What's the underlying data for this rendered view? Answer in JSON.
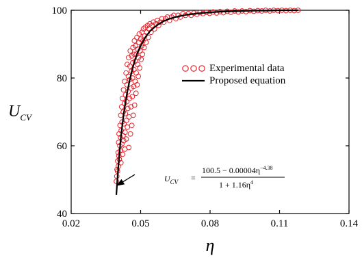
{
  "chart_data": {
    "type": "scatter",
    "xlabel": "η",
    "ylabel": "U",
    "ylabel_sub": "CV",
    "xlim": [
      0.02,
      0.14
    ],
    "ylim": [
      40,
      100
    ],
    "x_ticks": [
      0.02,
      0.05,
      0.08,
      0.11,
      0.14
    ],
    "x_tick_labels": [
      "0.02",
      "0.05",
      "0.08",
      "0.11",
      "0.14"
    ],
    "y_ticks": [
      40,
      60,
      80,
      100
    ],
    "y_tick_labels": [
      "40",
      "60",
      "80",
      "100"
    ],
    "grid": false,
    "legend_position": "center-right",
    "series": [
      {
        "name": "Experimental data",
        "kind": "scatter",
        "marker": "open-circle",
        "color": "#e8202a",
        "points": [
          [
            0.0395,
            49.5
          ],
          [
            0.0397,
            51.0
          ],
          [
            0.0398,
            53.0
          ],
          [
            0.04,
            52.5
          ],
          [
            0.0401,
            55.5
          ],
          [
            0.0403,
            58.0
          ],
          [
            0.0404,
            54.0
          ],
          [
            0.0405,
            61.0
          ],
          [
            0.0406,
            57.0
          ],
          [
            0.0407,
            63.5
          ],
          [
            0.0408,
            56.0
          ],
          [
            0.041,
            60.0
          ],
          [
            0.0411,
            66.0
          ],
          [
            0.0412,
            58.5
          ],
          [
            0.0413,
            62.5
          ],
          [
            0.0414,
            69.0
          ],
          [
            0.0415,
            55.0
          ],
          [
            0.0416,
            64.5
          ],
          [
            0.0418,
            71.5
          ],
          [
            0.0419,
            60.5
          ],
          [
            0.042,
            67.0
          ],
          [
            0.0421,
            74.0
          ],
          [
            0.0422,
            57.5
          ],
          [
            0.0424,
            63.0
          ],
          [
            0.0425,
            70.0
          ],
          [
            0.0426,
            76.5
          ],
          [
            0.0427,
            61.5
          ],
          [
            0.0428,
            66.5
          ],
          [
            0.043,
            72.5
          ],
          [
            0.0431,
            79.0
          ],
          [
            0.0432,
            59.0
          ],
          [
            0.0433,
            64.0
          ],
          [
            0.0434,
            69.5
          ],
          [
            0.0435,
            75.0
          ],
          [
            0.0437,
            81.5
          ],
          [
            0.0438,
            62.0
          ],
          [
            0.0439,
            67.5
          ],
          [
            0.044,
            73.0
          ],
          [
            0.0441,
            78.0
          ],
          [
            0.0442,
            84.0
          ],
          [
            0.0443,
            65.5
          ],
          [
            0.0445,
            71.0
          ],
          [
            0.0446,
            76.0
          ],
          [
            0.0447,
            80.5
          ],
          [
            0.0448,
            86.0
          ],
          [
            0.0449,
            59.5
          ],
          [
            0.045,
            68.5
          ],
          [
            0.0452,
            74.0
          ],
          [
            0.0453,
            79.5
          ],
          [
            0.0454,
            83.5
          ],
          [
            0.0455,
            88.0
          ],
          [
            0.0456,
            63.5
          ],
          [
            0.0458,
            71.5
          ],
          [
            0.0459,
            77.0
          ],
          [
            0.046,
            82.0
          ],
          [
            0.0461,
            86.5
          ],
          [
            0.0462,
            66.0
          ],
          [
            0.0464,
            74.5
          ],
          [
            0.0465,
            80.0
          ],
          [
            0.0466,
            84.5
          ],
          [
            0.0467,
            89.0
          ],
          [
            0.0468,
            69.0
          ],
          [
            0.047,
            77.5
          ],
          [
            0.0471,
            82.5
          ],
          [
            0.0472,
            87.0
          ],
          [
            0.0473,
            91.0
          ],
          [
            0.0474,
            72.0
          ],
          [
            0.0476,
            79.0
          ],
          [
            0.0477,
            85.0
          ],
          [
            0.0478,
            89.5
          ],
          [
            0.048,
            75.5
          ],
          [
            0.0481,
            81.5
          ],
          [
            0.0482,
            87.0
          ],
          [
            0.0484,
            92.0
          ],
          [
            0.0485,
            78.0
          ],
          [
            0.0487,
            84.0
          ],
          [
            0.0488,
            88.5
          ],
          [
            0.049,
            80.5
          ],
          [
            0.0491,
            86.0
          ],
          [
            0.0493,
            90.5
          ],
          [
            0.0494,
            93.0
          ],
          [
            0.0496,
            83.0
          ],
          [
            0.0498,
            88.0
          ],
          [
            0.05,
            91.5
          ],
          [
            0.0502,
            85.5
          ],
          [
            0.0504,
            89.5
          ],
          [
            0.0506,
            93.5
          ],
          [
            0.0508,
            87.0
          ],
          [
            0.051,
            91.0
          ],
          [
            0.0512,
            94.5
          ],
          [
            0.0515,
            89.0
          ],
          [
            0.0518,
            92.5
          ],
          [
            0.052,
            95.0
          ],
          [
            0.0523,
            90.5
          ],
          [
            0.0526,
            93.5
          ],
          [
            0.053,
            95.5
          ],
          [
            0.0533,
            92.0
          ],
          [
            0.0537,
            94.5
          ],
          [
            0.054,
            96.0
          ],
          [
            0.0545,
            93.5
          ],
          [
            0.055,
            95.5
          ],
          [
            0.0555,
            96.5
          ],
          [
            0.056,
            94.5
          ],
          [
            0.0566,
            96.0
          ],
          [
            0.0572,
            97.0
          ],
          [
            0.0578,
            95.5
          ],
          [
            0.0585,
            96.5
          ],
          [
            0.0592,
            97.5
          ],
          [
            0.06,
            96.5
          ],
          [
            0.0608,
            97.5
          ],
          [
            0.0616,
            98.0
          ],
          [
            0.0625,
            97.0
          ],
          [
            0.0634,
            98.0
          ],
          [
            0.0643,
            98.5
          ],
          [
            0.0652,
            97.5
          ],
          [
            0.0662,
            98.5
          ],
          [
            0.0672,
            98.0
          ],
          [
            0.0683,
            99.0
          ],
          [
            0.0694,
            98.5
          ],
          [
            0.0706,
            99.0
          ],
          [
            0.0718,
            98.5
          ],
          [
            0.073,
            99.2
          ],
          [
            0.0743,
            98.8
          ],
          [
            0.0756,
            99.3
          ],
          [
            0.077,
            99.0
          ],
          [
            0.0784,
            99.4
          ],
          [
            0.0798,
            99.1
          ],
          [
            0.0813,
            99.5
          ],
          [
            0.0828,
            99.2
          ],
          [
            0.0843,
            99.6
          ],
          [
            0.0858,
            99.3
          ],
          [
            0.0874,
            99.7
          ],
          [
            0.089,
            99.4
          ],
          [
            0.0906,
            99.8
          ],
          [
            0.0922,
            99.5
          ],
          [
            0.0938,
            99.8
          ],
          [
            0.0955,
            99.6
          ],
          [
            0.0972,
            99.9
          ],
          [
            0.0989,
            99.7
          ],
          [
            0.1006,
            99.9
          ],
          [
            0.1023,
            99.8
          ],
          [
            0.104,
            100.0
          ],
          [
            0.1058,
            99.8
          ],
          [
            0.1075,
            100.0
          ],
          [
            0.1093,
            99.9
          ],
          [
            0.111,
            100.0
          ],
          [
            0.1128,
            99.9
          ],
          [
            0.1146,
            100.0
          ],
          [
            0.1163,
            99.9
          ],
          [
            0.118,
            100.0
          ]
        ]
      },
      {
        "name": "Proposed equation",
        "kind": "line",
        "color": "#000000",
        "points": [
          [
            0.0395,
            45.5
          ],
          [
            0.04,
            50.5
          ],
          [
            0.0405,
            55.0
          ],
          [
            0.041,
            59.0
          ],
          [
            0.0415,
            62.5
          ],
          [
            0.042,
            65.5
          ],
          [
            0.0425,
            68.3
          ],
          [
            0.043,
            70.8
          ],
          [
            0.0435,
            73.0
          ],
          [
            0.044,
            75.0
          ],
          [
            0.045,
            78.5
          ],
          [
            0.046,
            81.5
          ],
          [
            0.047,
            84.0
          ],
          [
            0.048,
            86.2
          ],
          [
            0.049,
            88.0
          ],
          [
            0.05,
            89.5
          ],
          [
            0.052,
            92.0
          ],
          [
            0.054,
            93.8
          ],
          [
            0.056,
            95.0
          ],
          [
            0.058,
            96.0
          ],
          [
            0.06,
            96.8
          ],
          [
            0.0625,
            97.5
          ],
          [
            0.065,
            98.0
          ],
          [
            0.07,
            98.7
          ],
          [
            0.075,
            99.1
          ],
          [
            0.08,
            99.4
          ],
          [
            0.085,
            99.6
          ],
          [
            0.09,
            99.7
          ],
          [
            0.095,
            99.8
          ],
          [
            0.1,
            99.9
          ],
          [
            0.105,
            99.9
          ],
          [
            0.11,
            100.0
          ],
          [
            0.115,
            100.0
          ],
          [
            0.118,
            100.0
          ]
        ]
      }
    ],
    "annotation": {
      "lhs": "U",
      "lhs_sub": "CV",
      "equals": "=",
      "numerator_main": "100.5 − 0.00004η",
      "numerator_exp": "−4.38",
      "denominator_main": "1 + 1.16η",
      "denominator_exp": "4",
      "arrow_from": [
        0.0475,
        51.5
      ],
      "arrow_to": [
        0.0398,
        48.3
      ],
      "anchor": [
        0.0478,
        51.5
      ]
    }
  }
}
